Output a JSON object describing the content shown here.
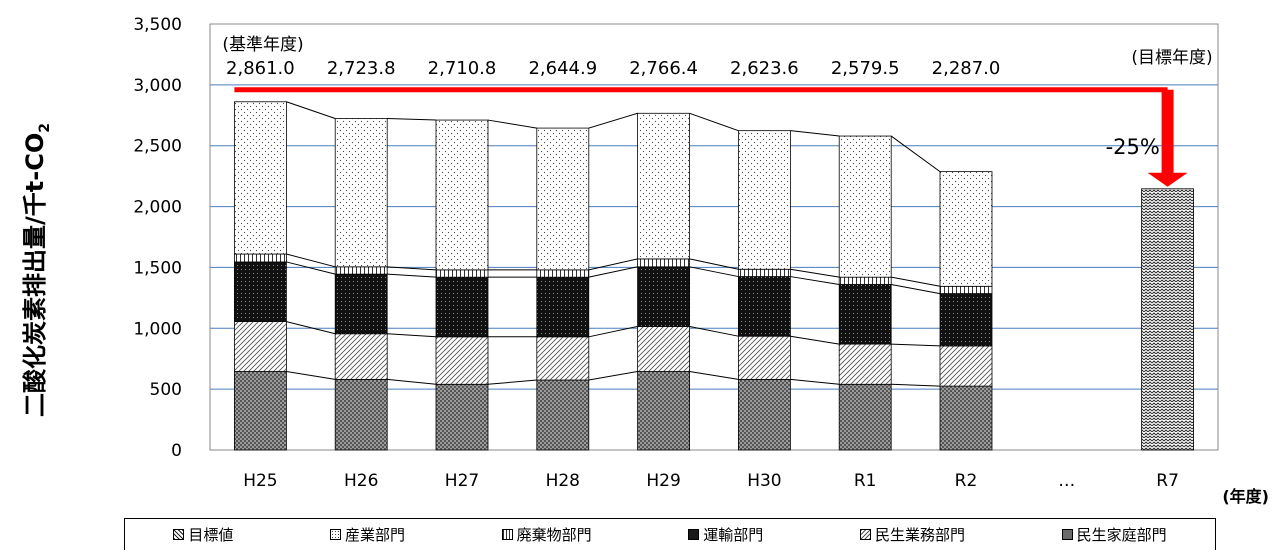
{
  "chart_data": {
    "type": "bar",
    "stacked": true,
    "ylabel": "二酸化炭素排出量/千t-CO",
    "ylabel_subscript": "2",
    "xlabel": "(年度)",
    "ylim": [
      0,
      3500
    ],
    "yticks": [
      "0",
      "500",
      "1,000",
      "1,500",
      "2,000",
      "2,500",
      "3,000",
      "3,500"
    ],
    "grid": true,
    "categories": [
      "H25",
      "H26",
      "H27",
      "H28",
      "H29",
      "H30",
      "R1",
      "R2",
      "…",
      "R7"
    ],
    "series": [
      {
        "name": "民生家庭部門",
        "values": [
          645,
          580,
          540,
          575,
          645,
          580,
          540,
          525,
          null,
          null
        ]
      },
      {
        "name": "民生業務部門",
        "values": [
          410,
          375,
          390,
          355,
          370,
          355,
          330,
          330,
          null,
          null
        ]
      },
      {
        "name": "運輸部門",
        "values": [
          490,
          490,
          490,
          490,
          490,
          490,
          490,
          430,
          null,
          null
        ]
      },
      {
        "name": "廃棄物部門",
        "values": [
          65,
          60,
          60,
          60,
          65,
          60,
          60,
          60,
          null,
          null
        ]
      },
      {
        "name": "産業部門",
        "values": [
          1251,
          1218.8,
          1230.8,
          1164.9,
          1196.4,
          1138.6,
          1159.5,
          942,
          null,
          null
        ]
      },
      {
        "name": "目標値",
        "values": [
          null,
          null,
          null,
          null,
          null,
          null,
          null,
          null,
          null,
          2146
        ]
      }
    ],
    "totals": [
      "2,861.0",
      "2,723.8",
      "2,710.8",
      "2,644.9",
      "2,766.4",
      "2,623.6",
      "2,579.5",
      "2,287.0"
    ],
    "total_values": [
      2861.0,
      2723.8,
      2710.8,
      2644.9,
      2766.4,
      2623.6,
      2579.5,
      2287.0
    ],
    "annotations": {
      "base_year": "(基準年度)",
      "target_year": "(目標年度)",
      "reduction": "-25%"
    },
    "legend_order": [
      "目標値",
      "産業部門",
      "廃棄物部門",
      "運輸部門",
      "民生業務部門",
      "民生家庭部門"
    ],
    "legend_placement": "bottom",
    "arrow_color": "#ff0000"
  }
}
